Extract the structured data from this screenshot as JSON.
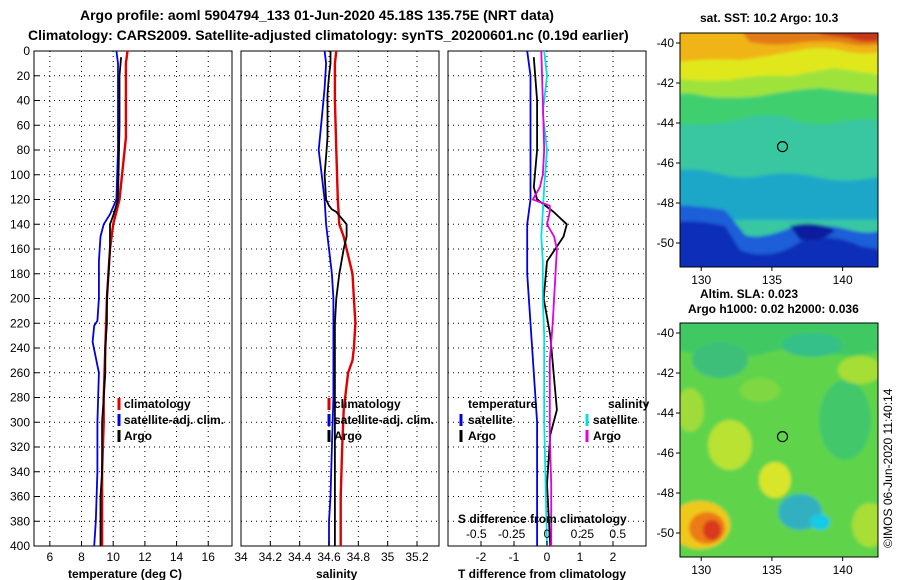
{
  "header": {
    "title_line1": "Argo profile: aoml 5904794_133 01-Jun-2020 45.18S 135.75E (NRT data)",
    "title_line2": "Climatology: CARS2009. Satellite-adjusted climatology: synTS_20200601.nc (0.19d earlier)"
  },
  "colors": {
    "climatology": "#e00000",
    "satellite": "#0000e0",
    "argo": "#000000",
    "sal_satellite": "#00e0e0",
    "sal_argo": "#e000e0"
  },
  "chart_data": [
    {
      "type": "line",
      "xlabel": "temperature (deg C)",
      "ylabel": "",
      "xlim": [
        5,
        17.5
      ],
      "ylim": [
        400,
        0
      ],
      "xticks": [
        "6",
        "8",
        "10",
        "12",
        "14",
        "16"
      ],
      "xtick_values": [
        6,
        8,
        10,
        12,
        14,
        16
      ],
      "yticks": [
        "0",
        "20",
        "40",
        "60",
        "80",
        "100",
        "120",
        "140",
        "160",
        "180",
        "200",
        "220",
        "240",
        "260",
        "280",
        "300",
        "320",
        "340",
        "360",
        "380",
        "400"
      ],
      "legend": [
        "climatology",
        "satellite-adj. clim.",
        "Argo"
      ],
      "series": [
        {
          "name": "climatology",
          "color_key": "climatology",
          "x": [
            10.9,
            10.8,
            10.8,
            10.8,
            10.4,
            10.0,
            9.8,
            9.6,
            9.5,
            9.4,
            9.4,
            9.3,
            9.3,
            9.3
          ],
          "y": [
            0,
            10,
            30,
            70,
            120,
            140,
            160,
            200,
            240,
            280,
            300,
            340,
            370,
            400
          ]
        },
        {
          "name": "satellite-adj. clim.",
          "color_key": "satellite",
          "x": [
            10.2,
            10.3,
            10.3,
            10.3,
            10.2,
            9.8,
            9.4,
            9.2,
            9.1,
            9.1,
            9.0,
            8.8,
            8.7,
            9.1,
            9.0,
            9.0,
            8.9,
            8.8
          ],
          "y": [
            0,
            10,
            30,
            80,
            120,
            132,
            140,
            150,
            170,
            200,
            218,
            222,
            235,
            260,
            300,
            340,
            380,
            400
          ]
        },
        {
          "name": "Argo",
          "color_key": "argo",
          "x": [
            10.5,
            10.4,
            10.4,
            10.3,
            10.0,
            9.8,
            9.8,
            9.7,
            9.6,
            9.6,
            9.6,
            9.5,
            9.5,
            9.4,
            9.3,
            9.3,
            9.3,
            9.2,
            9.2,
            9.2
          ],
          "y": [
            5,
            20,
            60,
            120,
            133,
            140,
            160,
            180,
            200,
            210,
            220,
            240,
            260,
            280,
            300,
            320,
            340,
            360,
            380,
            400
          ]
        }
      ]
    },
    {
      "type": "line",
      "xlabel": "salinity",
      "ylabel": "",
      "xlim": [
        34.0,
        35.35
      ],
      "ylim": [
        400,
        0
      ],
      "xticks": [
        "34",
        "34.2",
        "34.4",
        "34.6",
        "34.8",
        "35",
        "35.2"
      ],
      "xtick_values": [
        34.0,
        34.2,
        34.4,
        34.6,
        34.8,
        35.0,
        35.2
      ],
      "legend": [
        "climatology",
        "satellite-adj. clim.",
        "Argo"
      ],
      "series": [
        {
          "name": "climatology",
          "color_key": "climatology",
          "x": [
            34.65,
            34.64,
            34.64,
            34.65,
            34.66,
            34.67,
            34.7,
            34.72,
            34.76,
            34.77,
            34.78,
            34.77,
            34.76,
            34.73,
            34.7,
            34.69,
            34.68,
            34.68
          ],
          "y": [
            0,
            10,
            40,
            80,
            120,
            140,
            150,
            160,
            180,
            200,
            220,
            240,
            250,
            260,
            290,
            320,
            360,
            400
          ]
        },
        {
          "name": "satellite-adj. clim.",
          "color_key": "satellite",
          "x": [
            34.57,
            34.58,
            34.57,
            34.55,
            34.53,
            34.55,
            34.57,
            34.58,
            34.6,
            34.62,
            34.63,
            34.63,
            34.63,
            34.62,
            34.61,
            34.6,
            34.6
          ],
          "y": [
            0,
            10,
            30,
            55,
            80,
            100,
            120,
            140,
            160,
            180,
            200,
            240,
            280,
            320,
            360,
            380,
            400
          ]
        },
        {
          "name": "Argo",
          "color_key": "argo",
          "x": [
            34.61,
            34.61,
            34.6,
            34.59,
            34.59,
            34.58,
            34.57,
            34.58,
            34.6,
            34.62,
            34.65,
            34.72,
            34.72,
            34.7,
            34.67,
            34.65,
            34.64,
            34.64,
            34.64,
            34.64
          ],
          "y": [
            0,
            10,
            20,
            35,
            70,
            85,
            100,
            120,
            125,
            128,
            130,
            140,
            150,
            160,
            180,
            200,
            220,
            280,
            330,
            400
          ]
        }
      ]
    },
    {
      "type": "line",
      "xlabel": "T difference from climatology",
      "secondary_xlabel": "S difference from climatology",
      "xlim": [
        -3,
        3
      ],
      "ylim": [
        400,
        0
      ],
      "xticks": [
        "-2",
        "-1",
        "0",
        "1",
        "2"
      ],
      "xtick_values": [
        -2,
        -1,
        0,
        1,
        2
      ],
      "secondary_xticks": [
        "-0.5",
        "-0.25",
        "0",
        "0.25",
        "0.5"
      ],
      "secondary_xtick_values": [
        -0.5,
        -0.25,
        0,
        0.25,
        0.5
      ],
      "legend_headers": [
        "temperature",
        "salinity"
      ],
      "legend": [
        "satellite",
        "Argo",
        "satellite",
        "Argo"
      ],
      "series": [
        {
          "name": "T satellite",
          "axis": "T",
          "color_key": "satellite",
          "x": [
            -0.6,
            -0.5,
            -0.5,
            -0.5,
            -0.5,
            -0.6,
            -0.6,
            -0.5,
            -0.4,
            -0.3,
            -0.3,
            -0.3
          ],
          "y": [
            0,
            20,
            60,
            100,
            120,
            140,
            180,
            220,
            260,
            300,
            350,
            400
          ]
        },
        {
          "name": "T Argo",
          "axis": "T",
          "color_key": "argo",
          "x": [
            -0.4,
            -0.3,
            -0.3,
            -0.4,
            -0.3,
            0.2,
            0.6,
            0.5,
            0.0,
            -0.1,
            0.1,
            0.2,
            0.3,
            0.1,
            0.0,
            0.1
          ],
          "y": [
            5,
            40,
            80,
            110,
            120,
            130,
            140,
            150,
            170,
            200,
            230,
            260,
            290,
            310,
            350,
            400
          ]
        },
        {
          "name": "S satellite",
          "axis": "S",
          "color_key": "sal_satellite",
          "x": [
            -0.02,
            0.0,
            -0.03,
            0.0,
            -0.02,
            -0.03,
            -0.04,
            -0.03,
            -0.03,
            -0.02,
            -0.02,
            -0.02,
            -0.01,
            0.0
          ],
          "y": [
            0,
            20,
            50,
            80,
            110,
            130,
            150,
            170,
            200,
            230,
            260,
            300,
            350,
            400
          ]
        },
        {
          "name": "S Argo",
          "axis": "S",
          "color_key": "sal_argo",
          "x": [
            -0.04,
            -0.03,
            -0.02,
            -0.03,
            -0.05,
            -0.1,
            0.02,
            0.02,
            0.0,
            0.05,
            0.07,
            0.06,
            0.05,
            0.04,
            0.02,
            0.02,
            0.02,
            0.03,
            0.03
          ],
          "y": [
            0,
            40,
            80,
            100,
            110,
            120,
            125,
            130,
            140,
            150,
            160,
            180,
            200,
            220,
            250,
            280,
            310,
            350,
            400
          ]
        }
      ]
    }
  ],
  "maps": [
    {
      "title": "sat. SST: 10.2 Argo: 10.3",
      "lat_ticks": [
        "-40",
        "-42",
        "-44",
        "-46",
        "-48",
        "-50"
      ],
      "lat_values": [
        -40,
        -42,
        -44,
        -46,
        -48,
        -50
      ],
      "lon_ticks": [
        "130",
        "135",
        "140"
      ],
      "lon_values": [
        130,
        135,
        140
      ],
      "lat_range": [
        -39.5,
        -51.2
      ],
      "lon_range": [
        128.5,
        142.5
      ],
      "argo_lat": -45.18,
      "argo_lon": 135.75
    },
    {
      "title_line1": "Altim. SLA: 0.023",
      "title_line2": "Argo h1000: 0.02 h2000: 0.036",
      "lat_ticks": [
        "-40",
        "-42",
        "-44",
        "-46",
        "-48",
        "-50"
      ],
      "lat_values": [
        -40,
        -42,
        -44,
        -46,
        -48,
        -50
      ],
      "lon_ticks": [
        "130",
        "135",
        "140"
      ],
      "lon_values": [
        130,
        135,
        140
      ],
      "lat_range": [
        -39.5,
        -51.2
      ],
      "lon_range": [
        128.5,
        142.5
      ],
      "argo_lat": -45.18,
      "argo_lon": 135.75
    }
  ],
  "footer": {
    "timestamp": "©IMOS 06-Jun-2020 11:40:14"
  }
}
